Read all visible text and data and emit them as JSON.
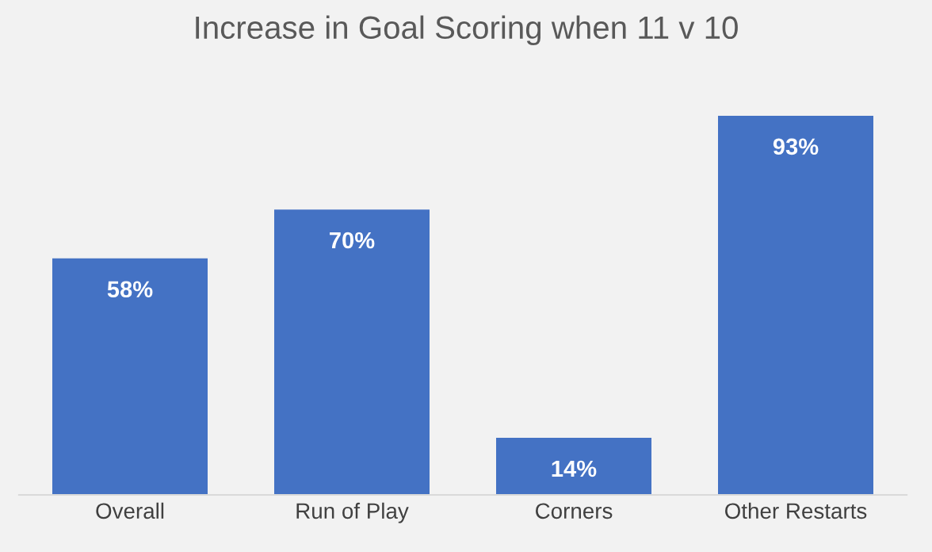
{
  "chart_data": {
    "type": "bar",
    "title": "Increase in Goal Scoring when 11 v 10",
    "categories": [
      "Overall",
      "Run of Play",
      "Corners",
      "Other Restarts"
    ],
    "values": [
      58,
      70,
      14,
      93
    ],
    "value_labels": [
      "58%",
      "70%",
      "14%",
      "93%"
    ],
    "color": "#4472c4",
    "grid": false,
    "legend": false,
    "tick_labels": "x"
  }
}
